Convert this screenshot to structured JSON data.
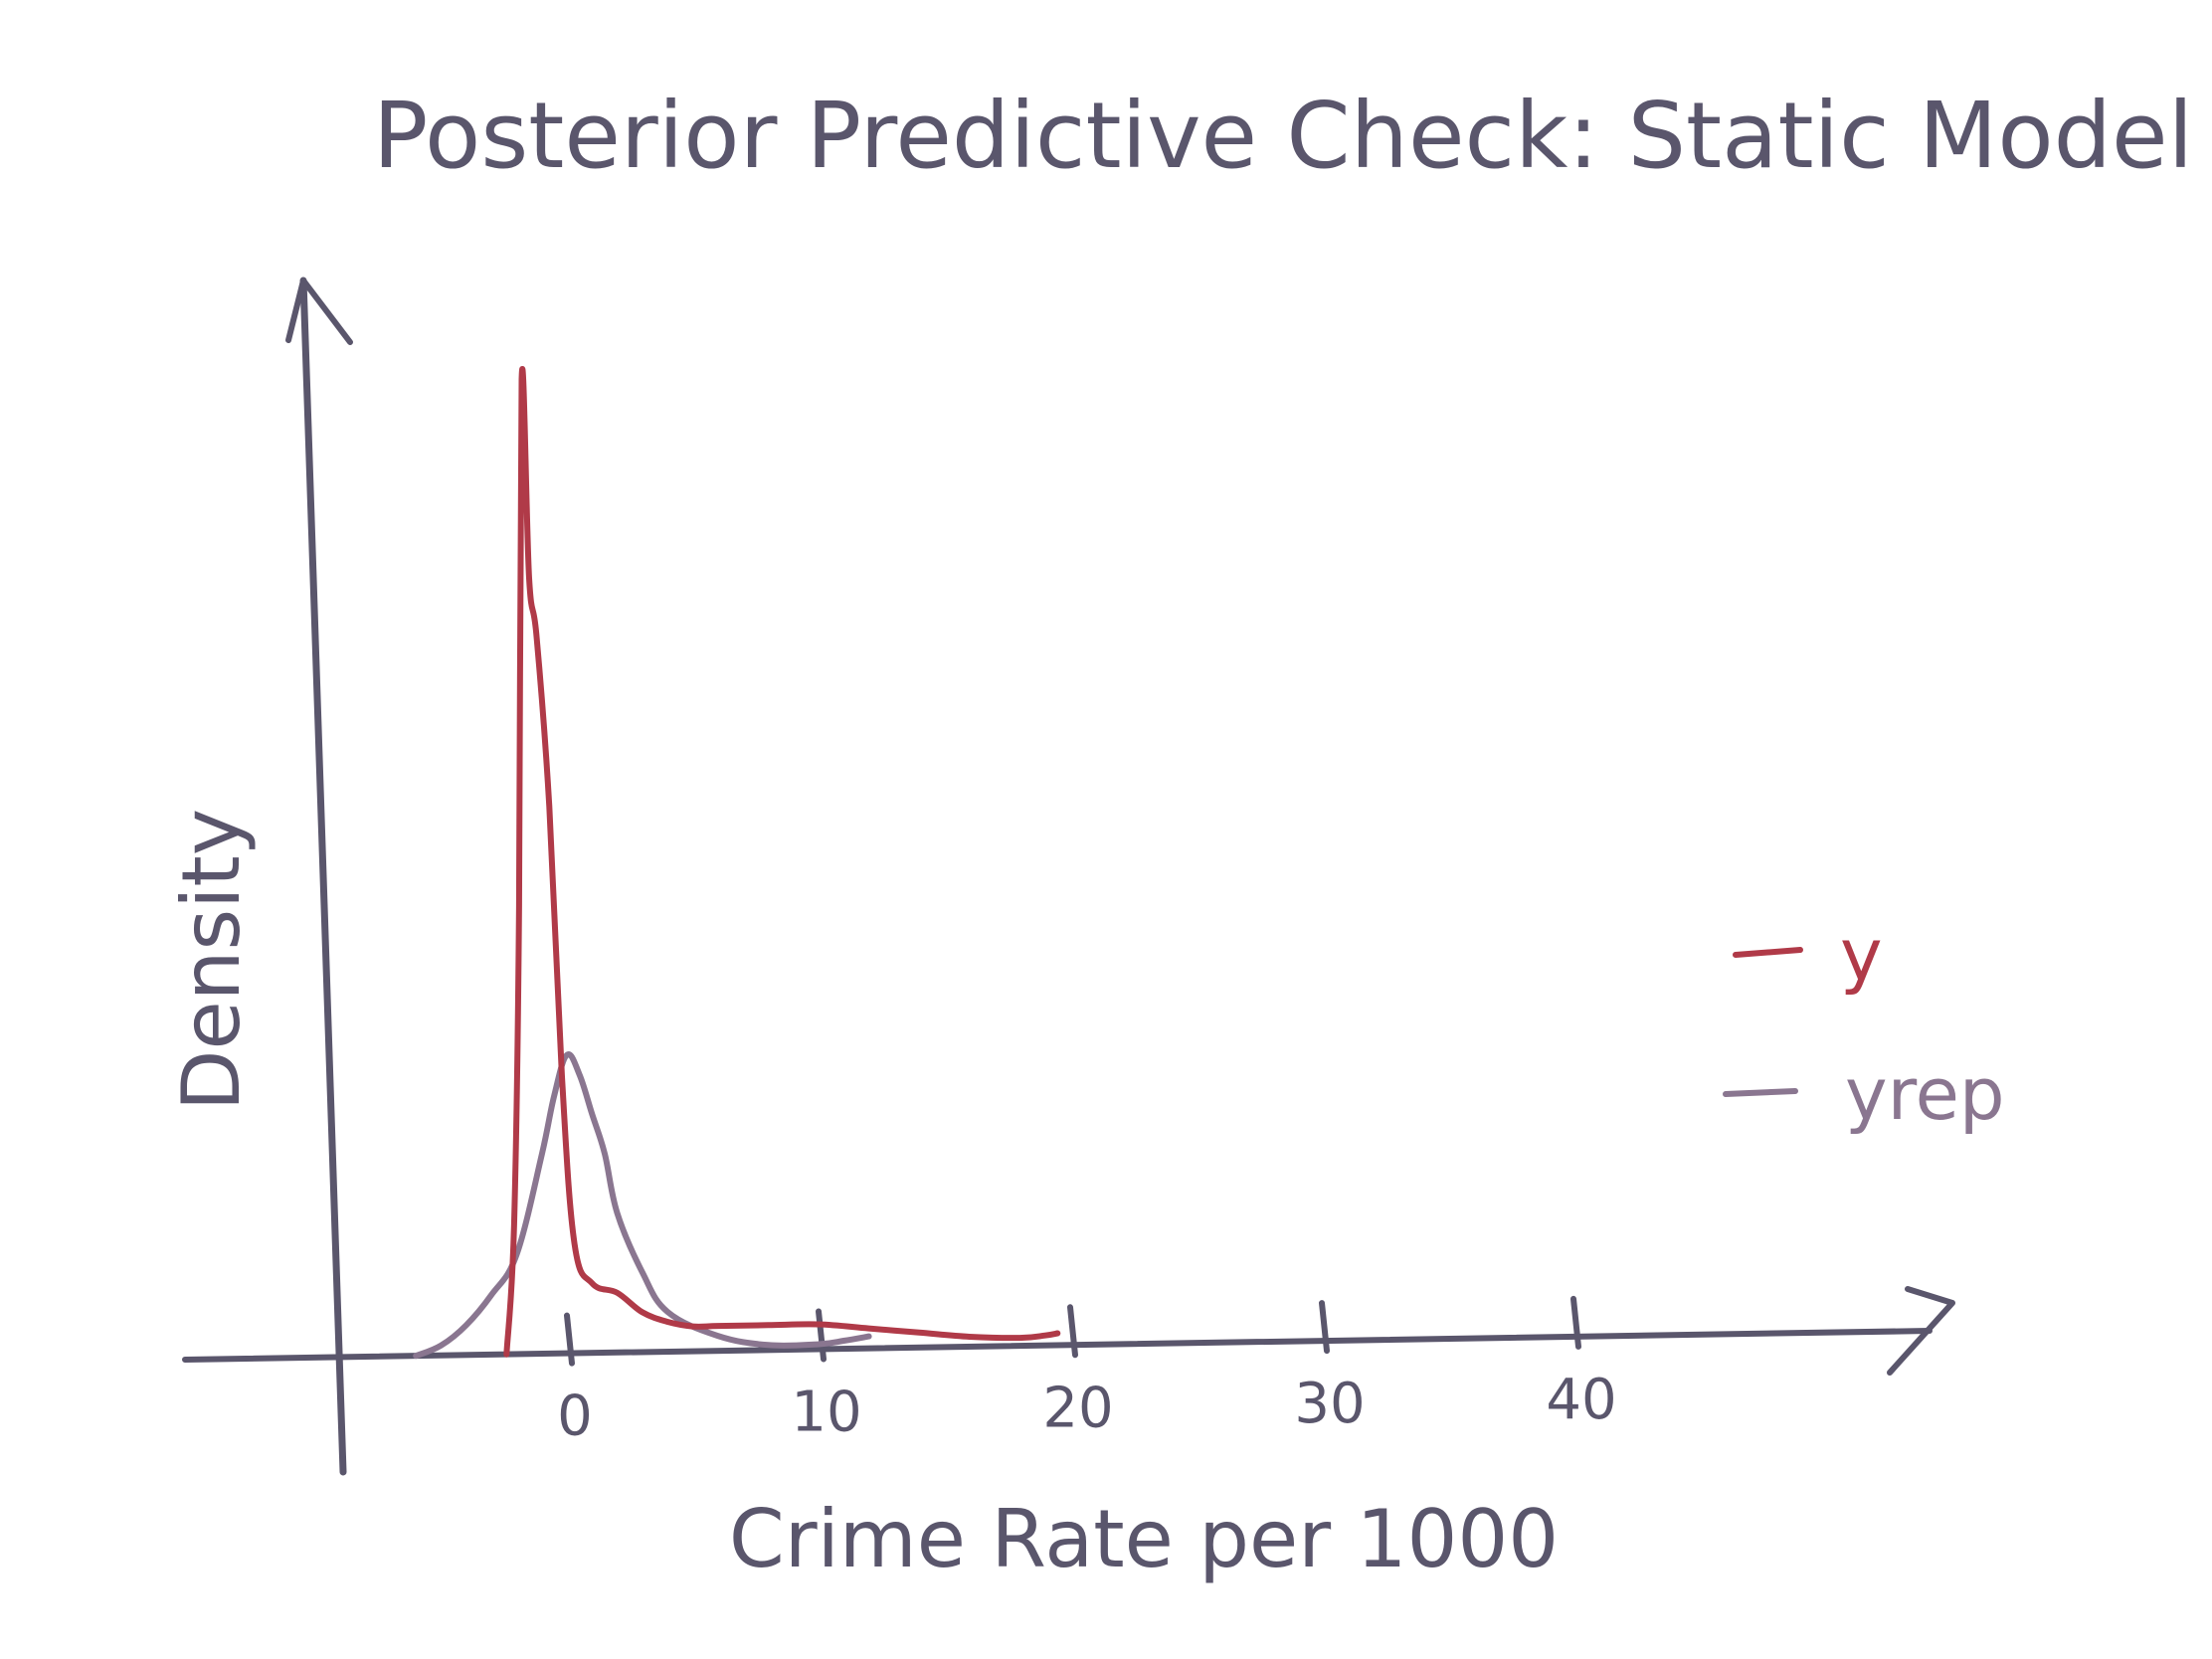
{
  "chart_data": {
    "type": "line",
    "title": "Posterior Predictive Check: Static Model",
    "xlabel": "Crime Rate per 1000",
    "ylabel": "Density",
    "xlim": [
      -7,
      47
    ],
    "ylim": [
      0,
      1.0
    ],
    "xticks": [
      0,
      10,
      20,
      30,
      40
    ],
    "xtick_labels": [
      "0",
      "10",
      "20",
      "30",
      "40"
    ],
    "legend_position": "right",
    "grid": false,
    "series": [
      {
        "name": "y",
        "color": "#b03a48",
        "x": [
          -2.4,
          -2.1,
          -1.9,
          -1.8,
          -1.5,
          -1.2,
          -0.7,
          -0.2,
          0.3,
          1.0,
          2.0,
          3.0,
          4.0,
          5.0,
          6.0,
          8.0,
          10.0,
          12.0,
          14.0,
          16.0,
          18.0,
          19.0,
          19.5
        ],
        "y": [
          0.0,
          0.13,
          0.45,
          0.98,
          0.78,
          0.72,
          0.55,
          0.28,
          0.11,
          0.07,
          0.06,
          0.04,
          0.03,
          0.025,
          0.025,
          0.025,
          0.025,
          0.02,
          0.015,
          0.01,
          0.008,
          0.01,
          0.012
        ]
      },
      {
        "name": "yrep",
        "color": "#8a7690",
        "x": [
          -6.0,
          -5.0,
          -4.0,
          -3.0,
          -2.0,
          -1.0,
          -0.5,
          0.0,
          0.5,
          1.0,
          1.5,
          2.0,
          3.0,
          4.0,
          6.0,
          8.0,
          10.0,
          11.0,
          12.0
        ],
        "y": [
          0.0,
          0.01,
          0.03,
          0.06,
          0.1,
          0.2,
          0.26,
          0.3,
          0.28,
          0.24,
          0.2,
          0.14,
          0.08,
          0.04,
          0.015,
          0.005,
          0.005,
          0.008,
          0.012
        ]
      }
    ]
  }
}
